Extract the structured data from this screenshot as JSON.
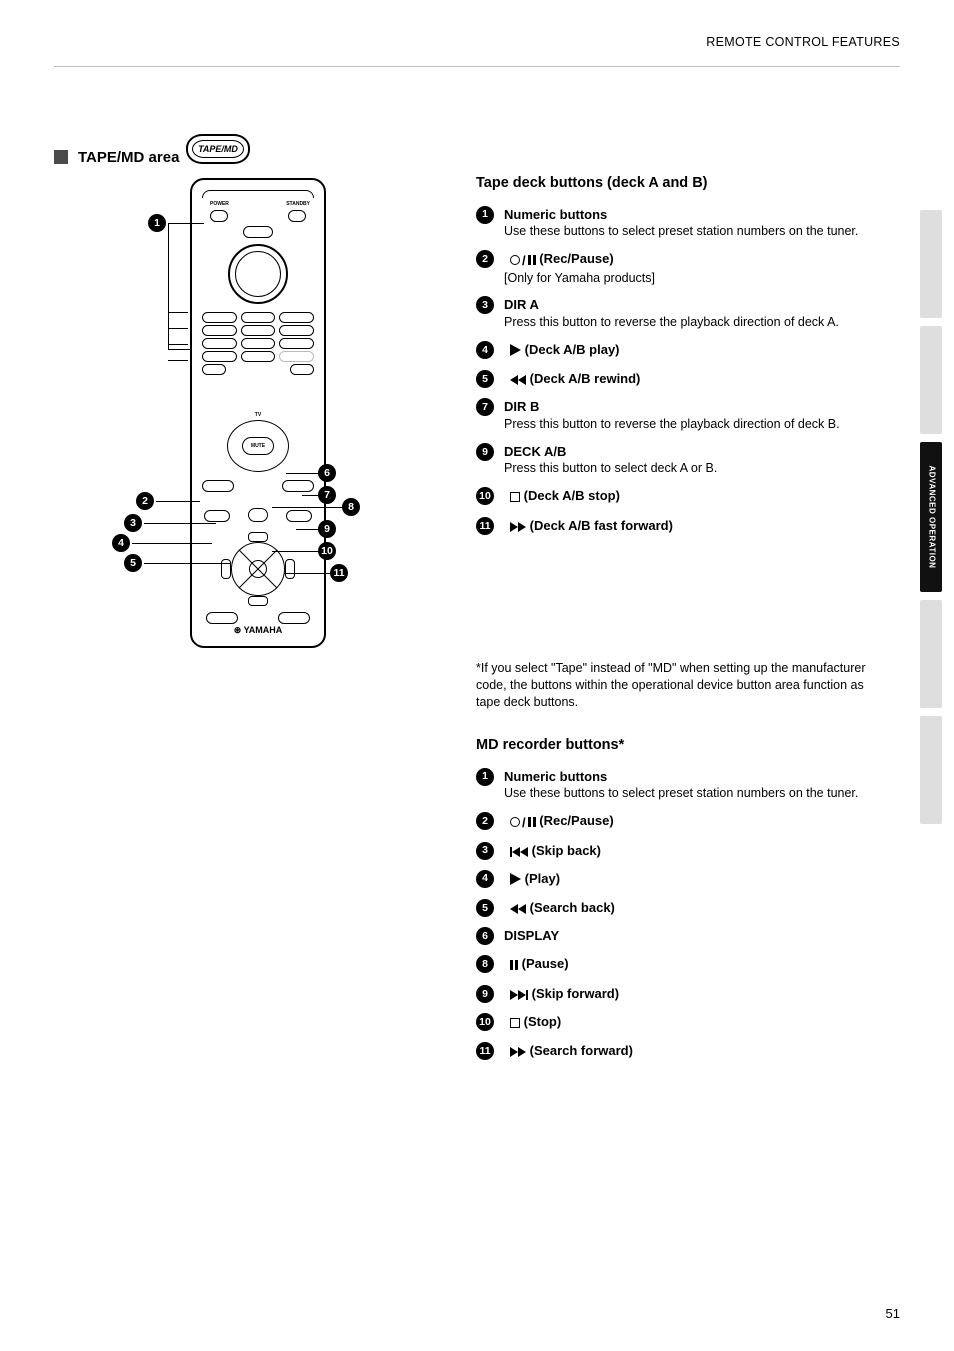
{
  "header": "REMOTE CONTROL FEATURES",
  "pageNumber": "51",
  "sidebarActiveLabel": "ADVANCED OPERATION",
  "sectionTitleArea": "TAPE/MD area",
  "tapeBadge": "TAPE/MD",
  "remoteBrand": "YAMAHA",
  "remoteLabels": {
    "power": "POWER",
    "standby": "STANDBY",
    "mute": "MUTE"
  },
  "calloutNumbers": [
    "1",
    "2",
    "3",
    "4",
    "5",
    "6",
    "7",
    "8",
    "9",
    "10",
    "11"
  ],
  "tapeBlock": {
    "title": "Tape deck buttons (deck A and B)",
    "items": [
      {
        "n": "1",
        "label": "Numeric buttons",
        "sub": "Use these buttons to select preset station numbers on the tuner."
      },
      {
        "n": "2",
        "sym": "rec-pause",
        "label": "(Rec/Pause)",
        "sub": "[Only for Yamaha products]"
      },
      {
        "n": "3",
        "label": "DIR A",
        "sub": "Press this button to reverse the playback direction of deck A."
      },
      {
        "n": "4",
        "sym": "play",
        "label": "(Deck A/B play)"
      },
      {
        "n": "5",
        "sym": "rew",
        "label": "(Deck A/B rewind)"
      },
      {
        "n": "7",
        "label": "DIR B",
        "sub": "Press this button to reverse the playback direction of deck B."
      },
      {
        "n": "9",
        "label": "DECK A/B",
        "sub": "Press this button to select deck A or B."
      },
      {
        "n": "10",
        "sym": "stop",
        "label": "(Deck A/B stop)"
      },
      {
        "n": "11",
        "sym": "ffwd",
        "label": "(Deck A/B fast forward)"
      }
    ]
  },
  "mdNote": "*If you select \"Tape\" instead of \"MD\" when setting up the manufacturer code, the buttons within the operational device button area function as tape deck buttons.",
  "mdBlock": {
    "title": "MD recorder buttons*",
    "items": [
      {
        "n": "1",
        "label": "Numeric buttons",
        "sub": "Use these buttons to select preset station numbers on the tuner."
      },
      {
        "n": "2",
        "sym": "rec-pause",
        "label": "(Rec/Pause)"
      },
      {
        "n": "3",
        "sym": "skip-back",
        "label": "(Skip back)"
      },
      {
        "n": "4",
        "sym": "play",
        "label": "(Play)"
      },
      {
        "n": "5",
        "sym": "rew",
        "label": "(Search back)"
      },
      {
        "n": "6",
        "label": "DISPLAY"
      },
      {
        "n": "8",
        "sym": "pause",
        "label": "(Pause)"
      },
      {
        "n": "9",
        "sym": "skip-fwd",
        "label": "(Skip forward)"
      },
      {
        "n": "10",
        "sym": "stop",
        "label": "(Stop)"
      },
      {
        "n": "11",
        "sym": "ffwd",
        "label": "(Search forward)"
      }
    ]
  }
}
